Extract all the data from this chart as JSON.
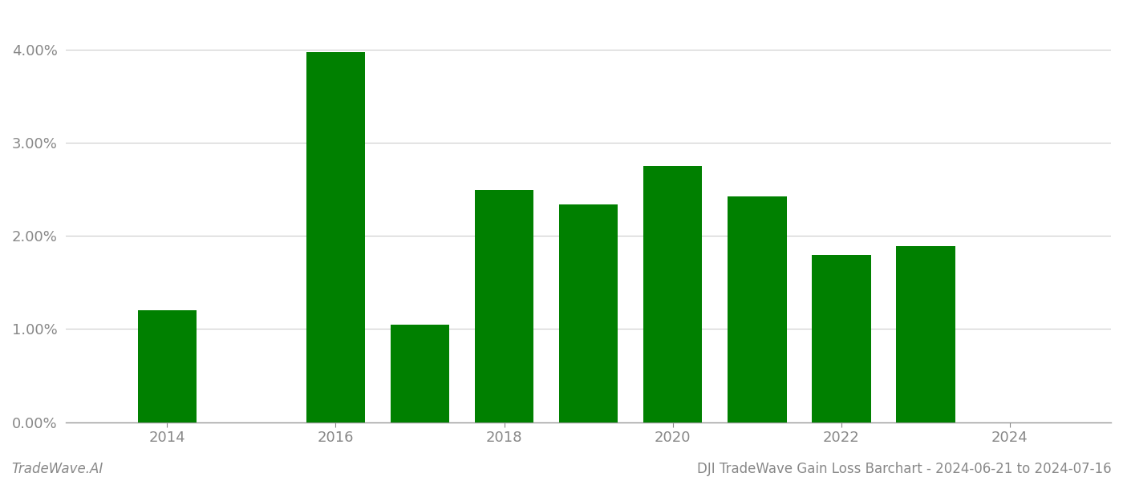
{
  "years": [
    2014,
    2016,
    2017,
    2018,
    2019,
    2020,
    2021,
    2022,
    2023
  ],
  "values": [
    0.012,
    0.0397,
    0.0105,
    0.0249,
    0.0234,
    0.0275,
    0.0242,
    0.0179,
    0.0189
  ],
  "bar_color": "#008000",
  "background_color": "#ffffff",
  "grid_color": "#cccccc",
  "axis_color": "#999999",
  "tick_color": "#888888",
  "ylim": [
    0.0,
    0.044
  ],
  "yticks": [
    0.0,
    0.01,
    0.02,
    0.03,
    0.04
  ],
  "xlim": [
    2012.8,
    2025.2
  ],
  "xticks": [
    2014,
    2016,
    2018,
    2020,
    2022,
    2024
  ],
  "footer_left": "TradeWave.AI",
  "footer_right": "DJI TradeWave Gain Loss Barchart - 2024-06-21 to 2024-07-16",
  "bar_width": 0.7,
  "tick_labelsize": 13,
  "footer_fontsize": 12
}
